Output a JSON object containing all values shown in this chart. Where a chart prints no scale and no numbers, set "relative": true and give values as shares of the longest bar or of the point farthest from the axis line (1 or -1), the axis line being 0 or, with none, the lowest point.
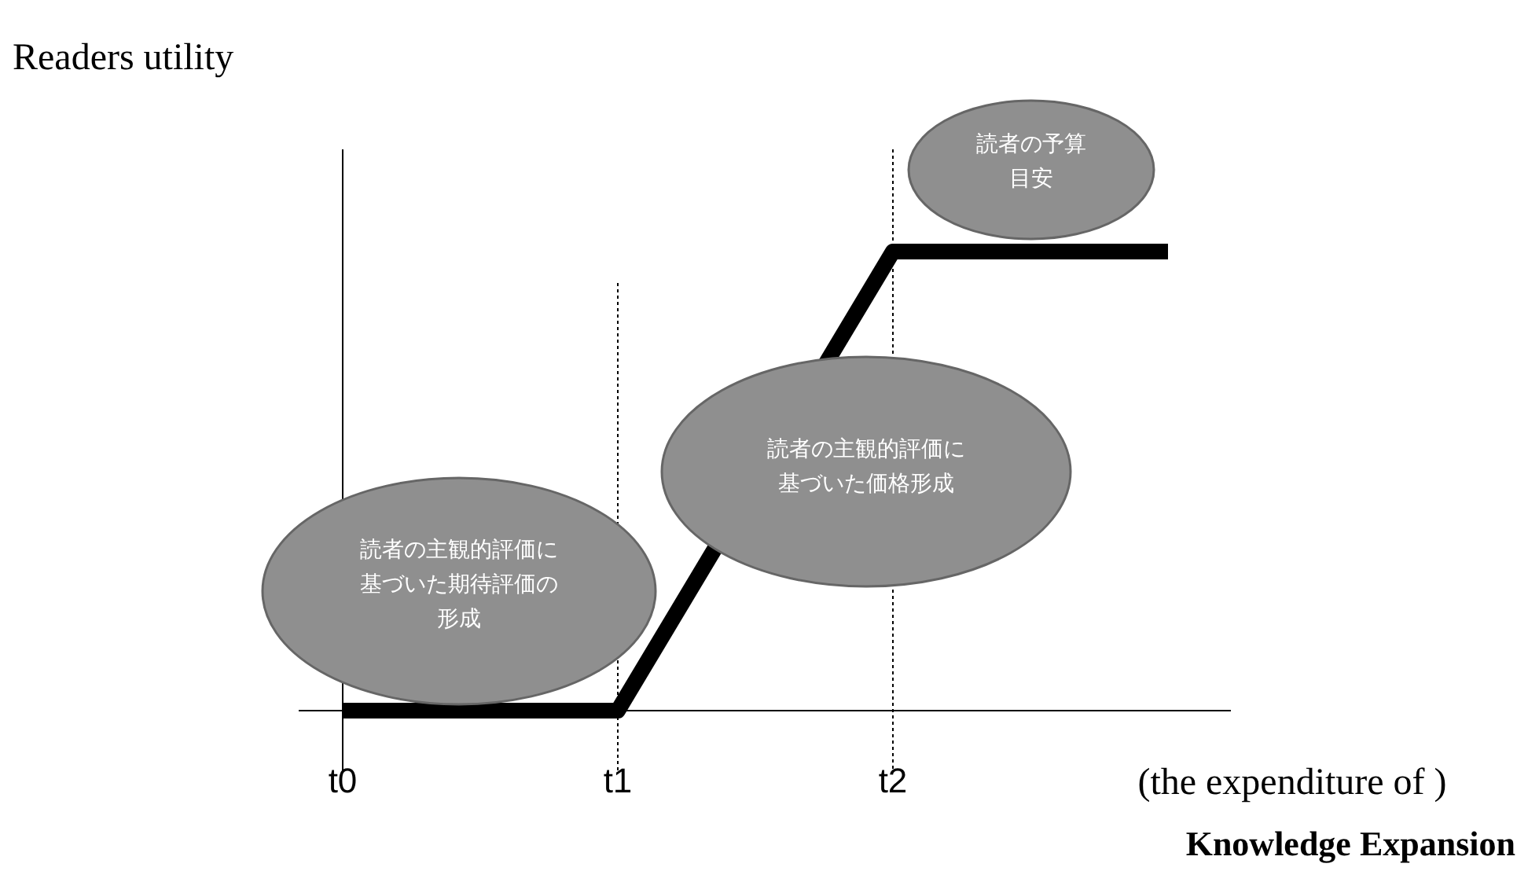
{
  "chart_data": {
    "type": "line",
    "relative": true,
    "ylabel": "Readers utility",
    "xlabel": "(the expenditure of )\nKnowledge Expansion",
    "categories": [
      "t0",
      "t1",
      "t2",
      null
    ],
    "series": [
      {
        "color": "#000000",
        "values": [
          0,
          0,
          1,
          1
        ]
      }
    ],
    "ref_lines": [
      {
        "axis": "x",
        "value": "t0",
        "line_style": "solid"
      },
      {
        "axis": "x",
        "value": "t1",
        "line_style": "dotted"
      },
      {
        "axis": "x",
        "value": "t2",
        "line_style": "dotted"
      }
    ],
    "annotations": [
      "読者の主観的評価に基づいた期待評価の形成",
      "読者の主観的評価に基づいた価格形成",
      "読者の予算目安"
    ],
    "grid": false,
    "marker": "none",
    "line_style": "solid"
  }
}
